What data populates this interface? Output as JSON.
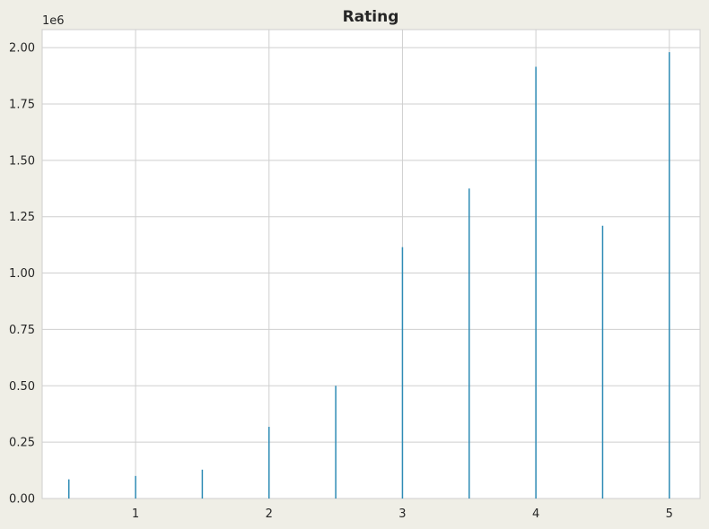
{
  "chart_data": {
    "type": "bar",
    "title": "Rating",
    "xlabel": "",
    "ylabel": "",
    "y_offset_label": "1e6",
    "xlim": [
      0.3,
      5.23
    ],
    "ylim": [
      0,
      2.08
    ],
    "xticks": [
      1,
      2,
      3,
      4,
      5
    ],
    "yticks": [
      0.0,
      0.25,
      0.5,
      0.75,
      1.0,
      1.25,
      1.5,
      1.75,
      2.0
    ],
    "ytick_labels": [
      "0.00",
      "0.25",
      "0.50",
      "0.75",
      "1.00",
      "1.25",
      "1.50",
      "1.75",
      "2.00"
    ],
    "grid": true,
    "colors": {
      "bar": "#2e8bb5",
      "background": "#efeee6",
      "plot_background": "#ffffff",
      "grid": "#cfcfcf",
      "text": "#262626"
    },
    "series": [
      {
        "x": [
          0.5,
          1.0,
          1.5,
          2.0,
          2.5,
          3.0,
          3.5,
          4.0,
          4.5,
          5.0
        ],
        "values": [
          0.085,
          0.1,
          0.128,
          0.318,
          0.5,
          1.115,
          1.375,
          1.915,
          1.21,
          1.98
        ]
      }
    ]
  }
}
